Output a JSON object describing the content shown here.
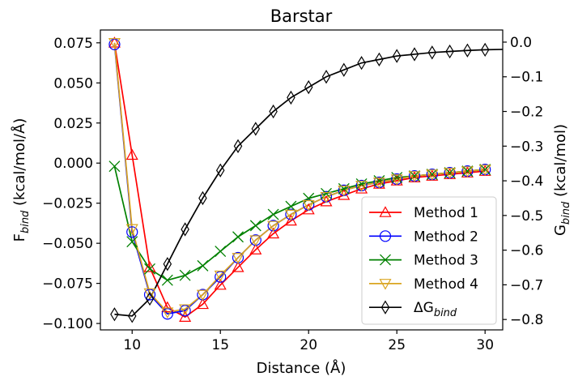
{
  "chart_data": {
    "type": "line",
    "title": "Barstar",
    "xlabel": "Distance (Å)",
    "ylabel_left": "F_bind (kcal/mol/Å)",
    "ylabel_right": "G_bind (kcal/mol)",
    "xlim": [
      8.2,
      31.0
    ],
    "ylim_left": [
      -0.104,
      0.083
    ],
    "ylim_right": [
      -0.83,
      0.035
    ],
    "xticks": [
      10,
      15,
      20,
      25,
      30
    ],
    "xtick_labels": [
      "10",
      "15",
      "20",
      "25",
      "30"
    ],
    "yticks_left": [
      0.075,
      0.05,
      0.025,
      0.0,
      -0.025,
      -0.05,
      -0.075,
      -0.1
    ],
    "ytick_labels_left": [
      "0.075",
      "0.050",
      "0.025",
      "0.000",
      "−0.025",
      "−0.050",
      "−0.075",
      "−0.100"
    ],
    "yticks_right": [
      0.0,
      -0.1,
      -0.2,
      -0.3,
      -0.4,
      -0.5,
      -0.6,
      -0.7,
      -0.8
    ],
    "ytick_labels_right": [
      "0.0",
      "−0.1",
      "−0.2",
      "−0.3",
      "−0.4",
      "−0.5",
      "−0.6",
      "−0.7",
      "−0.8"
    ],
    "grid": false,
    "legend_position": "lower-right",
    "x": [
      9,
      10,
      11,
      12,
      13,
      14,
      15,
      16,
      17,
      18,
      19,
      20,
      21,
      22,
      23,
      24,
      25,
      26,
      27,
      28,
      29,
      30
    ],
    "series": [
      {
        "name": "Method 1",
        "axis": "left",
        "color": "#ff0000",
        "marker": "triangle-up",
        "values": [
          0.075,
          0.005,
          -0.065,
          -0.09,
          -0.096,
          -0.088,
          -0.076,
          -0.065,
          -0.054,
          -0.044,
          -0.036,
          -0.029,
          -0.024,
          -0.02,
          -0.016,
          -0.013,
          -0.011,
          -0.009,
          -0.008,
          -0.007,
          -0.006,
          -0.005
        ]
      },
      {
        "name": "Method 2",
        "axis": "left",
        "color": "#0000ff",
        "marker": "circle",
        "values": [
          0.074,
          -0.043,
          -0.082,
          -0.094,
          -0.092,
          -0.082,
          -0.071,
          -0.059,
          -0.048,
          -0.039,
          -0.032,
          -0.026,
          -0.021,
          -0.017,
          -0.014,
          -0.012,
          -0.01,
          -0.008,
          -0.007,
          -0.006,
          -0.005,
          -0.004
        ]
      },
      {
        "name": "Method 3",
        "axis": "left",
        "color": "#008000",
        "marker": "x",
        "values": [
          -0.002,
          -0.049,
          -0.066,
          -0.073,
          -0.07,
          -0.064,
          -0.055,
          -0.046,
          -0.039,
          -0.032,
          -0.027,
          -0.022,
          -0.019,
          -0.016,
          -0.013,
          -0.011,
          -0.009,
          -0.008,
          -0.007,
          -0.006,
          -0.005,
          -0.004
        ]
      },
      {
        "name": "Method 4",
        "axis": "left",
        "color": "#daa520",
        "marker": "triangle-down",
        "values": [
          0.075,
          -0.041,
          -0.081,
          -0.093,
          -0.091,
          -0.082,
          -0.07,
          -0.059,
          -0.048,
          -0.039,
          -0.032,
          -0.026,
          -0.021,
          -0.017,
          -0.014,
          -0.012,
          -0.01,
          -0.008,
          -0.007,
          -0.006,
          -0.005,
          -0.004
        ]
      },
      {
        "name": "ΔG_bind",
        "axis": "right",
        "color": "#000000",
        "marker": "diamond",
        "values": [
          -0.785,
          -0.79,
          -0.74,
          -0.64,
          -0.54,
          -0.45,
          -0.37,
          -0.3,
          -0.25,
          -0.2,
          -0.16,
          -0.13,
          -0.1,
          -0.08,
          -0.06,
          -0.05,
          -0.04,
          -0.035,
          -0.03,
          -0.027,
          -0.024,
          -0.022
        ]
      }
    ]
  }
}
